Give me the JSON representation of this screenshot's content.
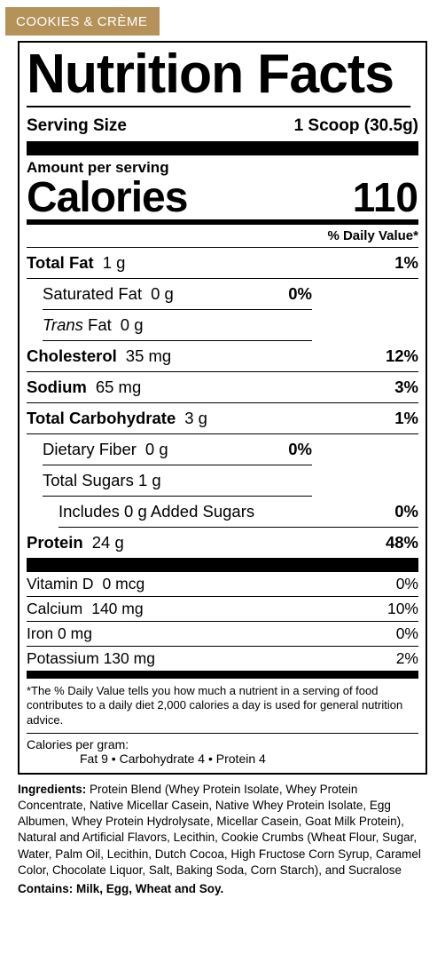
{
  "flavor": "COOKIES & CRÈME",
  "title": "Nutrition Facts",
  "serving_size_label": "Serving Size",
  "serving_size_value": "1 Scoop (30.5g)",
  "amount_per_serving": "Amount per serving",
  "calories_label": "Calories",
  "calories_value": "110",
  "dv_header": "% Daily Value*",
  "nutrients": {
    "total_fat": {
      "label": "Total Fat",
      "amount": "1 g",
      "dv": "1%"
    },
    "sat_fat": {
      "label": "Saturated Fat",
      "amount": "0 g",
      "dv": "0%"
    },
    "trans_fat": {
      "label_pre": "Trans",
      "label_post": " Fat",
      "amount": "0 g"
    },
    "cholesterol": {
      "label": "Cholesterol",
      "amount": "35 mg",
      "dv": "12%"
    },
    "sodium": {
      "label": "Sodium",
      "amount": "65 mg",
      "dv": "3%"
    },
    "total_carb": {
      "label": "Total Carbohydrate",
      "amount": "3 g",
      "dv": "1%"
    },
    "fiber": {
      "label": "Dietary Fiber",
      "amount": "0 g",
      "dv": "0%"
    },
    "total_sugars": {
      "label": "Total Sugars",
      "amount": "1 g"
    },
    "added_sugars": {
      "text": "Includes 0 g Added Sugars",
      "dv": "0%"
    },
    "protein": {
      "label": "Protein",
      "amount": "24 g",
      "dv": "48%"
    }
  },
  "vitamins": {
    "vit_d": {
      "label": "Vitamin D",
      "amount": "0 mcg",
      "dv": "0%"
    },
    "calcium": {
      "label": "Calcium",
      "amount": "140 mg",
      "dv": "10%"
    },
    "iron": {
      "label": "Iron",
      "amount": "0 mg",
      "dv": "0%"
    },
    "potassium": {
      "label": "Potassium",
      "amount": "130 mg",
      "dv": "2%"
    }
  },
  "footnote": "*The % Daily Value tells you how much a nutrient in a serving of food contributes to a daily diet 2,000 calories a day is used for general nutrition advice.",
  "cpg_label": "Calories per gram:",
  "cpg_values": "Fat  9   •   Carbohydrate 4   •   Protein   4",
  "ingredients_label": "Ingredients: ",
  "ingredients_text": "Protein Blend (Whey Protein Isolate, Whey Protein Concentrate, Native Micellar Casein, Native Whey Protein Isolate, Egg Albumen, Whey Protein Hydrolysate, Micellar Casein, Goat Milk Protein), Natural and Artificial Flavors, Lecithin, Cookie Crumbs (Wheat Flour, Sugar, Water, Palm Oil, Lecithin, Dutch Cocoa, High Fructose Corn Syrup, Caramel Color, Chocolate Liquor, Salt, Baking Soda, Corn Starch), and Sucralose",
  "contains_label": "Contains: ",
  "contains_text": "Milk, Egg, Wheat and Soy."
}
